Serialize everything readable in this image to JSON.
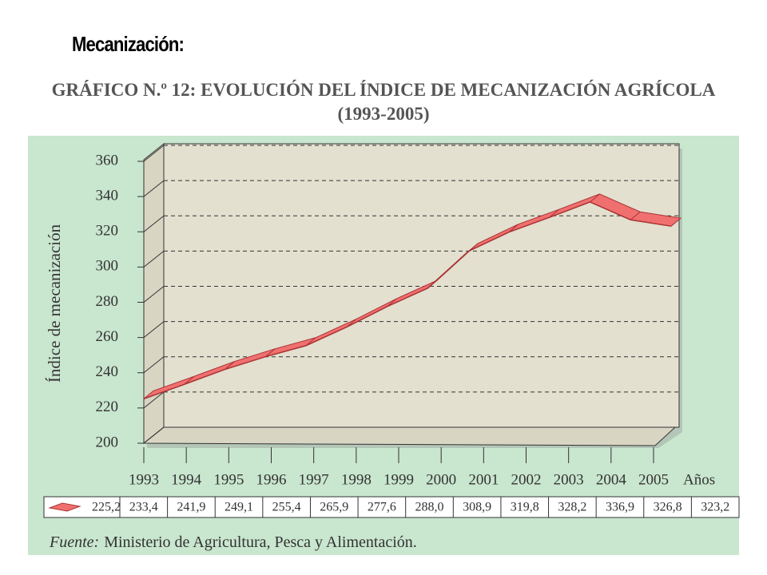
{
  "header": "Mecanización:",
  "chart_data": {
    "type": "line",
    "title": "GRÁFICO N.º 12: EVOLUCIÓN DEL ÍNDICE DE MECANIZACIÓN AGRÍCOLA (1993-2005)",
    "y_label": "Índice de mecanización",
    "x_label": "Años",
    "categories": [
      "1993",
      "1994",
      "1995",
      "1996",
      "1997",
      "1998",
      "1999",
      "2000",
      "2001",
      "2002",
      "2003",
      "2004",
      "2005",
      null
    ],
    "values": [
      225.2,
      233.4,
      241.9,
      249.1,
      255.4,
      265.9,
      277.6,
      288.0,
      308.9,
      319.8,
      328.2,
      336.9,
      326.8,
      323.2
    ],
    "value_labels": [
      "225,2",
      "233,4",
      "241,9",
      "249,1",
      "255,4",
      "265,9",
      "277,6",
      "288,0",
      "308,9",
      "319,8",
      "328,2",
      "336,9",
      "326,8",
      "323,2"
    ],
    "color": "#f07070",
    "ylim": [
      200,
      360
    ],
    "yticks": [
      200,
      220,
      240,
      260,
      280,
      300,
      320,
      340,
      360
    ],
    "grid": true,
    "source": {
      "label": "Fuente:",
      "text": "Ministerio de Agricultura, Pesca y Alimentación."
    }
  }
}
